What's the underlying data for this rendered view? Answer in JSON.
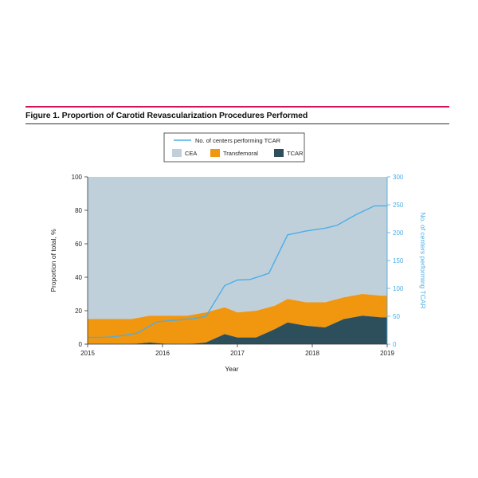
{
  "figure": {
    "title": "Figure 1. Proportion of Carotid Revascularization Procedures Performed"
  },
  "colors": {
    "cea": "#c0d0da",
    "transfemoral": "#f0960f",
    "tcar": "#2d4f5c",
    "line": "#4aaee8",
    "accent_rule": "#d4145a"
  },
  "chart_data": {
    "type": "area",
    "xlabel": "Year",
    "ylabel": "Proportion of total, %",
    "y2label": "No. of centers performing TCAR",
    "xlim": [
      2015,
      2019
    ],
    "ylim": [
      0,
      100
    ],
    "y2lim": [
      0,
      300
    ],
    "x_ticks": [
      "2015",
      "2016",
      "2017",
      "2018",
      "2019"
    ],
    "y_ticks": [
      "0",
      "20",
      "40",
      "60",
      "80",
      "100"
    ],
    "y2_ticks": [
      "0",
      "50",
      "100",
      "150",
      "200",
      "250",
      "300"
    ],
    "legend": {
      "line_label": "No. of centers performing TCAR",
      "area_labels": [
        "CEA",
        "Transfemoral",
        "TCAR"
      ]
    },
    "x": [
      2015.0,
      2015.33,
      2015.58,
      2015.83,
      2016.08,
      2016.33,
      2016.58,
      2016.83,
      2017.0,
      2017.25,
      2017.5,
      2017.67,
      2017.92,
      2018.17,
      2018.42,
      2018.67,
      2018.92,
      2019.0
    ],
    "series": [
      {
        "name": "TCAR",
        "kind": "area",
        "values": [
          0,
          0,
          0,
          1,
          0,
          0,
          1,
          6,
          4,
          4,
          9,
          13,
          11,
          10,
          15,
          17,
          16,
          16
        ]
      },
      {
        "name": "Transfemoral",
        "kind": "area",
        "values": [
          15,
          15,
          15,
          16,
          17,
          17,
          18,
          16,
          15,
          16,
          14,
          14,
          14,
          15,
          13,
          13,
          13,
          13
        ]
      },
      {
        "name": "CEA",
        "kind": "area",
        "values": [
          85,
          85,
          85,
          83,
          83,
          83,
          81,
          78,
          81,
          80,
          77,
          73,
          75,
          75,
          72,
          70,
          71,
          71
        ]
      },
      {
        "name": "No. of centers performing TCAR",
        "kind": "line",
        "axis": "y2",
        "x": [
          2015.0,
          2015.17,
          2015.33,
          2015.5,
          2015.67,
          2015.92,
          2016.17,
          2016.42,
          2016.58,
          2016.83,
          2017.0,
          2017.17,
          2017.42,
          2017.67,
          2017.92,
          2018.17,
          2018.33,
          2018.58,
          2018.83,
          2019.0
        ],
        "values": [
          12,
          12,
          13,
          16,
          20,
          40,
          43,
          46,
          50,
          105,
          115,
          116,
          127,
          196,
          203,
          208,
          213,
          232,
          248,
          248
        ]
      }
    ]
  }
}
